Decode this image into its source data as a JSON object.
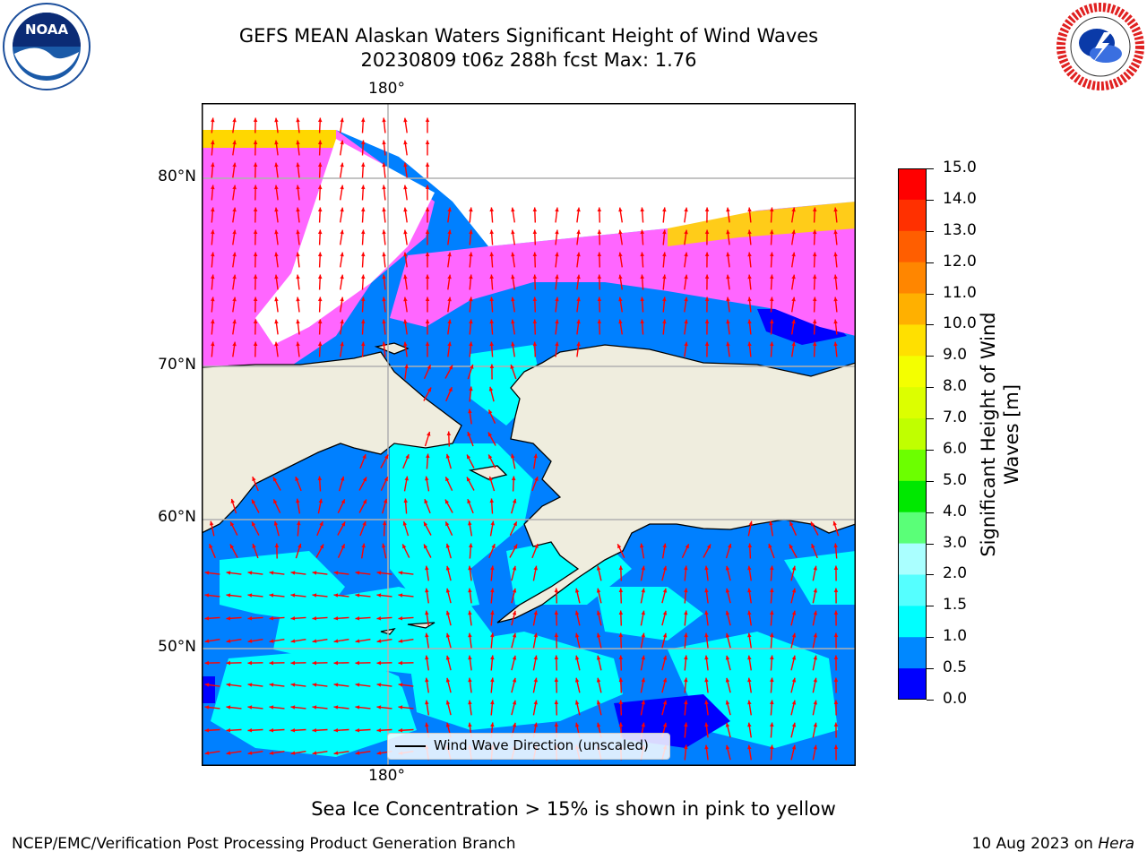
{
  "title": {
    "line1": "GEFS MEAN Alaskan Waters Significant Height of Wind Waves",
    "line2": "20230809 t06z 288h fcst   Max: 1.76"
  },
  "logos": {
    "left": "noaa-logo",
    "right": "nws-logo",
    "left_text": "NOAA",
    "right_text": "NATIONAL WEATHER SERVICE"
  },
  "map": {
    "lon_labels": {
      "top": "180°",
      "bottom": "180°"
    },
    "lat_labels": [
      "80°N",
      "70°N",
      "60°N",
      "50°N"
    ],
    "colors": {
      "land": "#efedde",
      "ocean_low": "#0080ff",
      "ocean_mid": "#00ffff",
      "ice_pink": "#ff66ff",
      "ice_yellow": "#ffd700",
      "arrow": "#ff0000"
    }
  },
  "legend": {
    "label": "Wind Wave Direction (unscaled)"
  },
  "colorbar": {
    "title_line1": "Significant Height of Wind",
    "title_line2": "Waves [m]",
    "ticks": [
      "15.0",
      "14.0",
      "13.0",
      "12.0",
      "11.0",
      "10.0",
      "9.0",
      "8.0",
      "7.0",
      "6.0",
      "5.0",
      "4.0",
      "3.0",
      "2.0",
      "1.5",
      "1.0",
      "0.5",
      "0.0"
    ],
    "colors": [
      "#ff0000",
      "#ff3000",
      "#ff5e00",
      "#ff8600",
      "#ffb000",
      "#ffe000",
      "#f4ff00",
      "#dcff00",
      "#c0ff00",
      "#6cff00",
      "#00e800",
      "#5aff78",
      "#aaffff",
      "#55ffff",
      "#00ffff",
      "#0088ff",
      "#0000ff"
    ]
  },
  "note": "Sea Ice Concentration > 15% is shown in pink to yellow",
  "footer": {
    "left": "NCEP/EMC/Verification Post Processing Product Generation Branch",
    "right_date": "10 Aug 2023 on ",
    "right_host": "Hera"
  }
}
